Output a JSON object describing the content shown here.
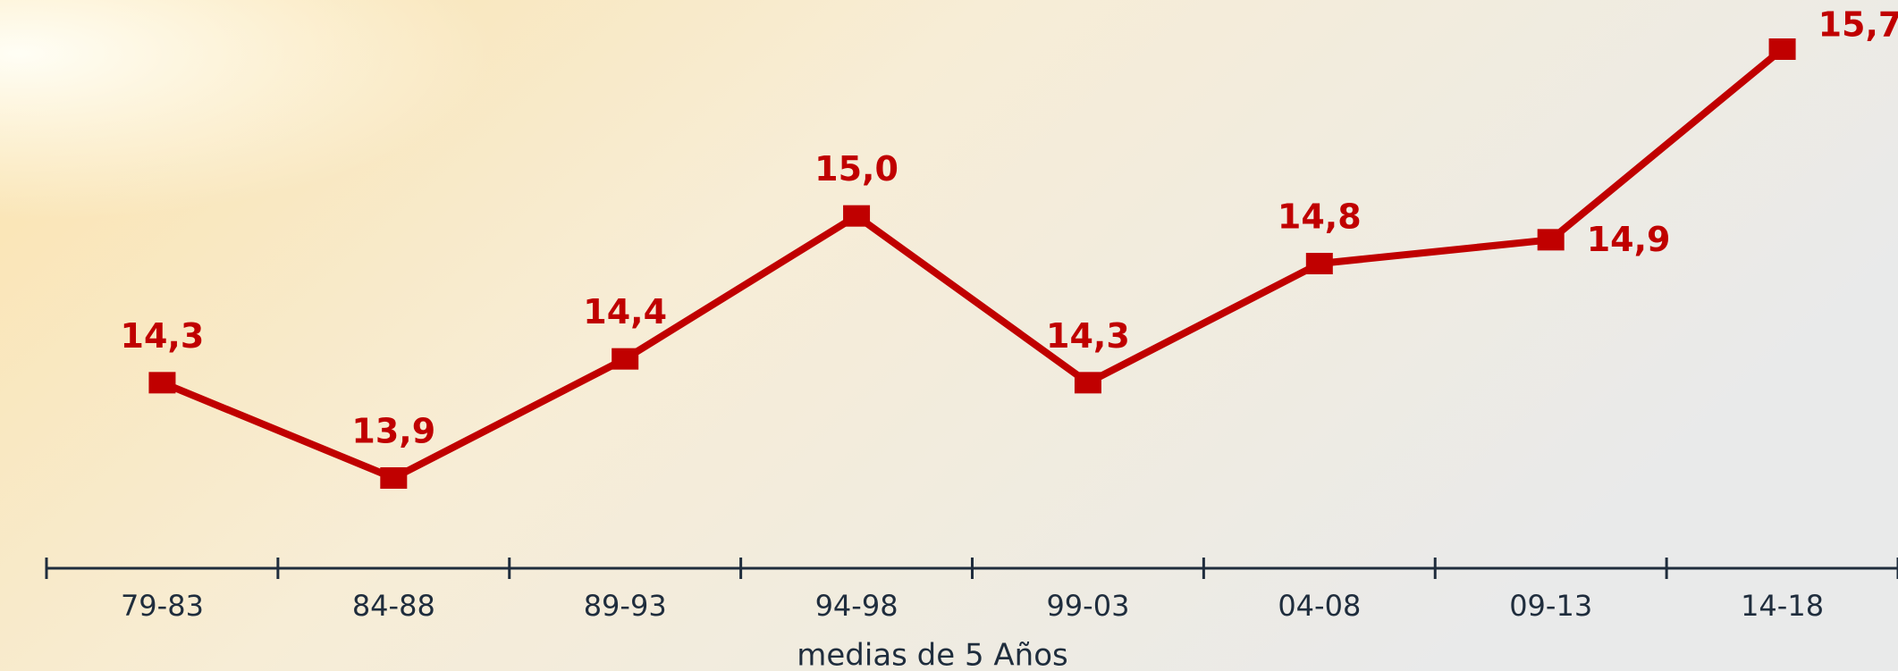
{
  "chart_data": {
    "type": "line",
    "x_label": "medias de 5 Años",
    "categories": [
      "79-83",
      "84-88",
      "89-93",
      "94-98",
      "99-03",
      "04-08",
      "09-13",
      "14-18"
    ],
    "values": [
      14.3,
      13.9,
      14.4,
      15.0,
      14.3,
      14.8,
      14.9,
      15.7
    ],
    "value_labels": [
      "14,3",
      "13,9",
      "14,4",
      "15,0",
      "14,3",
      "14,8",
      "14,9",
      "15,7"
    ],
    "color": "#c00000"
  }
}
